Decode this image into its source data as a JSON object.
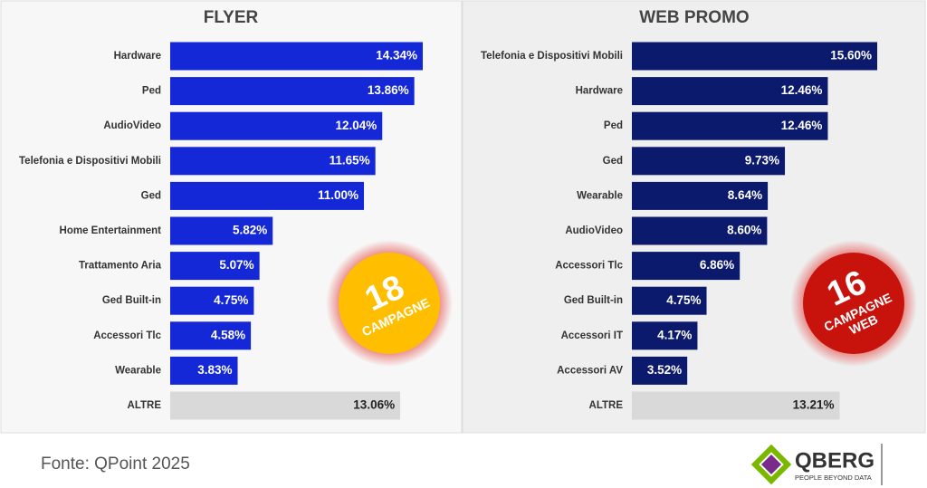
{
  "chart_data": [
    {
      "type": "bar",
      "title": "FLYER",
      "categories": [
        "Hardware",
        "Ped",
        "AudioVideo",
        "Telefonia e Dispositivi Mobili",
        "Ged",
        "Home Entertainment",
        "Trattamento Aria",
        "Ged Built-in",
        "Accessori Tlc",
        "Wearable",
        "ALTRE"
      ],
      "values": [
        14.34,
        13.86,
        12.04,
        11.65,
        11.0,
        5.82,
        5.07,
        4.75,
        4.58,
        3.83,
        13.06
      ],
      "value_labels": [
        "14.34%",
        "13.86%",
        "12.04%",
        "11.65%",
        "11.00%",
        "5.82%",
        "5.07%",
        "4.75%",
        "4.58%",
        "3.83%",
        "13.06%"
      ],
      "colors": [
        "#1428d8",
        "#1428d8",
        "#1428d8",
        "#1428d8",
        "#1428d8",
        "#1428d8",
        "#1428d8",
        "#1428d8",
        "#1428d8",
        "#1428d8",
        "#d9d9d9"
      ],
      "badge": {
        "number": "18",
        "lines": [
          "CAMPAGNE"
        ],
        "color": "#ffbf00"
      }
    },
    {
      "type": "bar",
      "title": "WEB PROMO",
      "categories": [
        "Telefonia e Dispositivi Mobili",
        "Hardware",
        "Ped",
        "Ged",
        "Wearable",
        "AudioVideo",
        "Accessori Tlc",
        "Ged Built-in",
        "Accessori IT",
        "Accessori AV",
        "ALTRE"
      ],
      "values": [
        15.6,
        12.46,
        12.46,
        9.73,
        8.64,
        8.6,
        6.86,
        4.75,
        4.17,
        3.52,
        13.21
      ],
      "value_labels": [
        "15.60%",
        "12.46%",
        "12.46%",
        "9.73%",
        "8.64%",
        "8.60%",
        "6.86%",
        "4.75%",
        "4.17%",
        "3.52%",
        "13.21%"
      ],
      "colors": [
        "#0c1a6e",
        "#0c1a6e",
        "#0c1a6e",
        "#0c1a6e",
        "#0c1a6e",
        "#0c1a6e",
        "#0c1a6e",
        "#0c1a6e",
        "#0c1a6e",
        "#0c1a6e",
        "#d9d9d9"
      ],
      "badge": {
        "number": "16",
        "lines": [
          "CAMPAGNE",
          "WEB"
        ],
        "color": "#c8120c"
      }
    }
  ],
  "footer": {
    "source": "Fonte: QPoint 2025",
    "logo": "QBERG",
    "tagline": "PEOPLE BEYOND DATA"
  }
}
